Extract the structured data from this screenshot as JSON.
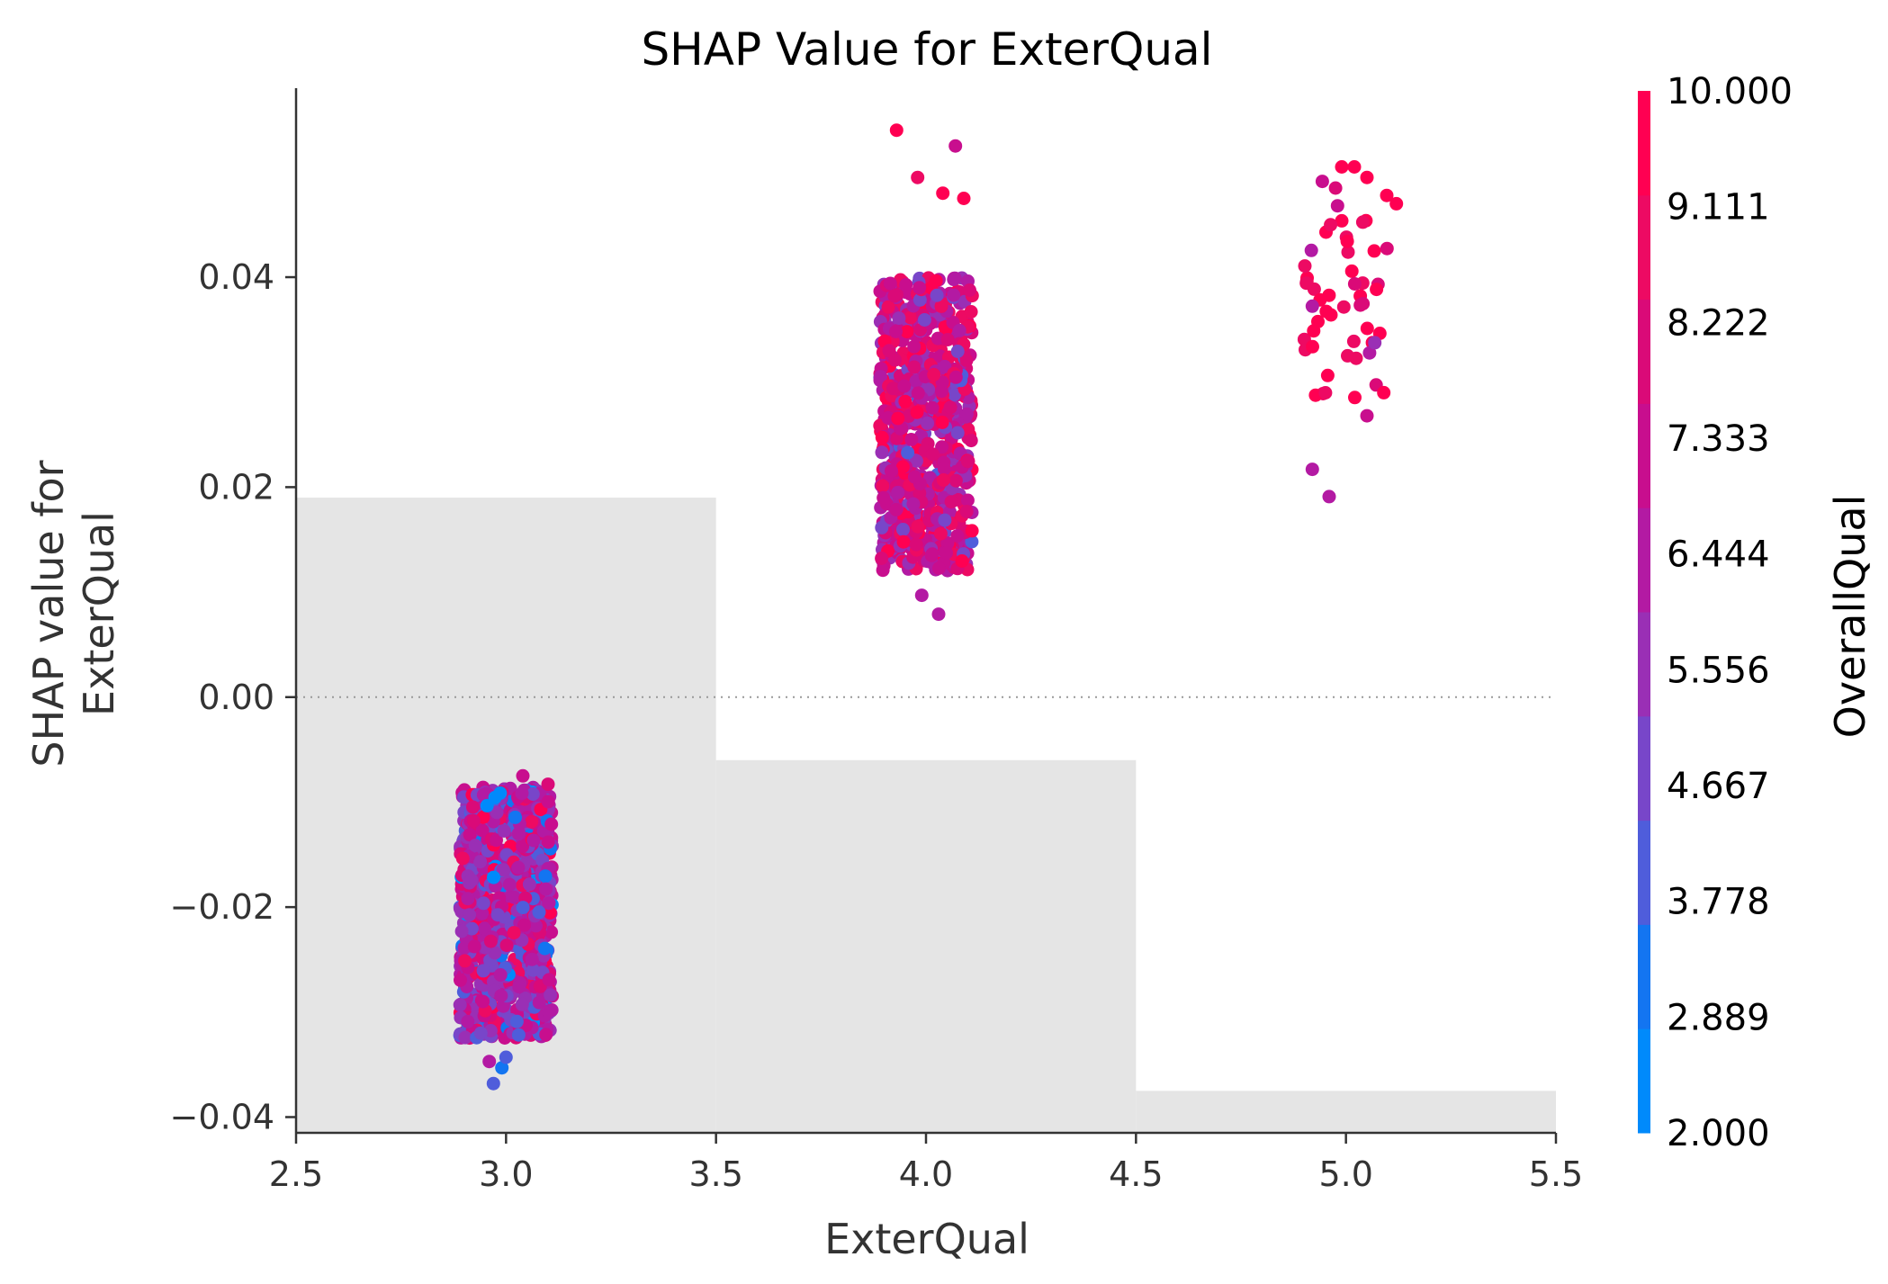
{
  "chart_data": {
    "type": "scatter",
    "title": "SHAP Value for ExterQual",
    "xlabel": "ExterQual",
    "ylabel_lines": [
      "SHAP value for",
      "ExterQual"
    ],
    "xlim": [
      2.5,
      5.5
    ],
    "ylim": [
      -0.0415,
      0.058
    ],
    "xticks": [
      2.5,
      3.0,
      3.5,
      4.0,
      4.5,
      5.0,
      5.5
    ],
    "xtick_labels": [
      "2.5",
      "3.0",
      "3.5",
      "4.0",
      "4.5",
      "5.0",
      "5.5"
    ],
    "yticks": [
      -0.04,
      -0.02,
      0.0,
      0.02,
      0.04
    ],
    "ytick_labels": [
      "−0.04",
      "−0.02",
      "0.00",
      "0.02",
      "0.04"
    ],
    "reference_line_y": 0.0,
    "histogram_background": [
      {
        "x_start": 2.5,
        "x_end": 3.5,
        "height_y": 0.019
      },
      {
        "x_start": 3.5,
        "x_end": 4.5,
        "height_y": -0.006
      },
      {
        "x_start": 4.5,
        "x_end": 5.5,
        "height_y": -0.0375
      }
    ],
    "colorbar": {
      "label": "OverallQual",
      "min": 2.0,
      "max": 10.0,
      "tick_labels": [
        "10.000",
        "9.111",
        "8.222",
        "7.333",
        "6.444",
        "5.556",
        "4.667",
        "3.778",
        "2.889",
        "2.000"
      ],
      "colors_low_to_high": [
        "#008afb",
        "#1375f1",
        "#4f5ddb",
        "#7846c9",
        "#9a2fb5",
        "#b31aa3",
        "#c80e8e",
        "#da0a78",
        "#ed0a63",
        "#ff0052"
      ]
    },
    "clusters": [
      {
        "x_center": 3.0,
        "jitter": 0.11,
        "y_min": -0.0325,
        "y_max": -0.0085,
        "n": 950,
        "color_weights": [
          0.02,
          0.03,
          0.05,
          0.12,
          0.22,
          0.2,
          0.18,
          0.1,
          0.05,
          0.03
        ]
      },
      {
        "x_center": 4.0,
        "jitter": 0.11,
        "y_min": 0.012,
        "y_max": 0.04,
        "n": 700,
        "color_weights": [
          0.0,
          0.0,
          0.02,
          0.05,
          0.12,
          0.18,
          0.2,
          0.18,
          0.15,
          0.1
        ]
      },
      {
        "x_center": 5.0,
        "jitter": 0.1,
        "y_min": 0.028,
        "y_max": 0.05,
        "n": 52,
        "color_weights": [
          0.0,
          0.0,
          0.0,
          0.0,
          0.02,
          0.04,
          0.06,
          0.15,
          0.3,
          0.43
        ]
      }
    ],
    "highlighted_points": [
      {
        "x": 3.93,
        "y": 0.054,
        "c": 9.6
      },
      {
        "x": 4.07,
        "y": 0.0525,
        "c": 6.8
      },
      {
        "x": 3.98,
        "y": 0.0495,
        "c": 8.6
      },
      {
        "x": 4.04,
        "y": 0.048,
        "c": 9.3
      },
      {
        "x": 4.09,
        "y": 0.0475,
        "c": 9.5
      },
      {
        "x": 3.99,
        "y": 0.0097,
        "c": 6.2
      },
      {
        "x": 4.03,
        "y": 0.0079,
        "c": 6.5
      },
      {
        "x": 2.96,
        "y": -0.0347,
        "c": 6.6
      },
      {
        "x": 2.99,
        "y": -0.0353,
        "c": 3.2
      },
      {
        "x": 2.97,
        "y": -0.0368,
        "c": 4.3
      },
      {
        "x": 3.0,
        "y": -0.0343,
        "c": 4.0
      },
      {
        "x": 2.94,
        "y": -0.032,
        "c": 5.0
      },
      {
        "x": 3.04,
        "y": -0.0075,
        "c": 7.4
      },
      {
        "x": 3.1,
        "y": -0.0083,
        "c": 7.9
      },
      {
        "x": 5.02,
        "y": 0.0505,
        "c": 9.6
      },
      {
        "x": 4.99,
        "y": 0.0505,
        "c": 9.8
      },
      {
        "x": 5.05,
        "y": 0.0495,
        "c": 9.4
      },
      {
        "x": 4.92,
        "y": 0.0217,
        "c": 6.4
      },
      {
        "x": 4.96,
        "y": 0.0191,
        "c": 6.6
      },
      {
        "x": 5.05,
        "y": 0.0268,
        "c": 6.8
      },
      {
        "x": 5.09,
        "y": 0.029,
        "c": 9.2
      },
      {
        "x": 4.98,
        "y": 0.0468,
        "c": 6.8
      },
      {
        "x": 5.12,
        "y": 0.047,
        "c": 9.6
      }
    ]
  }
}
